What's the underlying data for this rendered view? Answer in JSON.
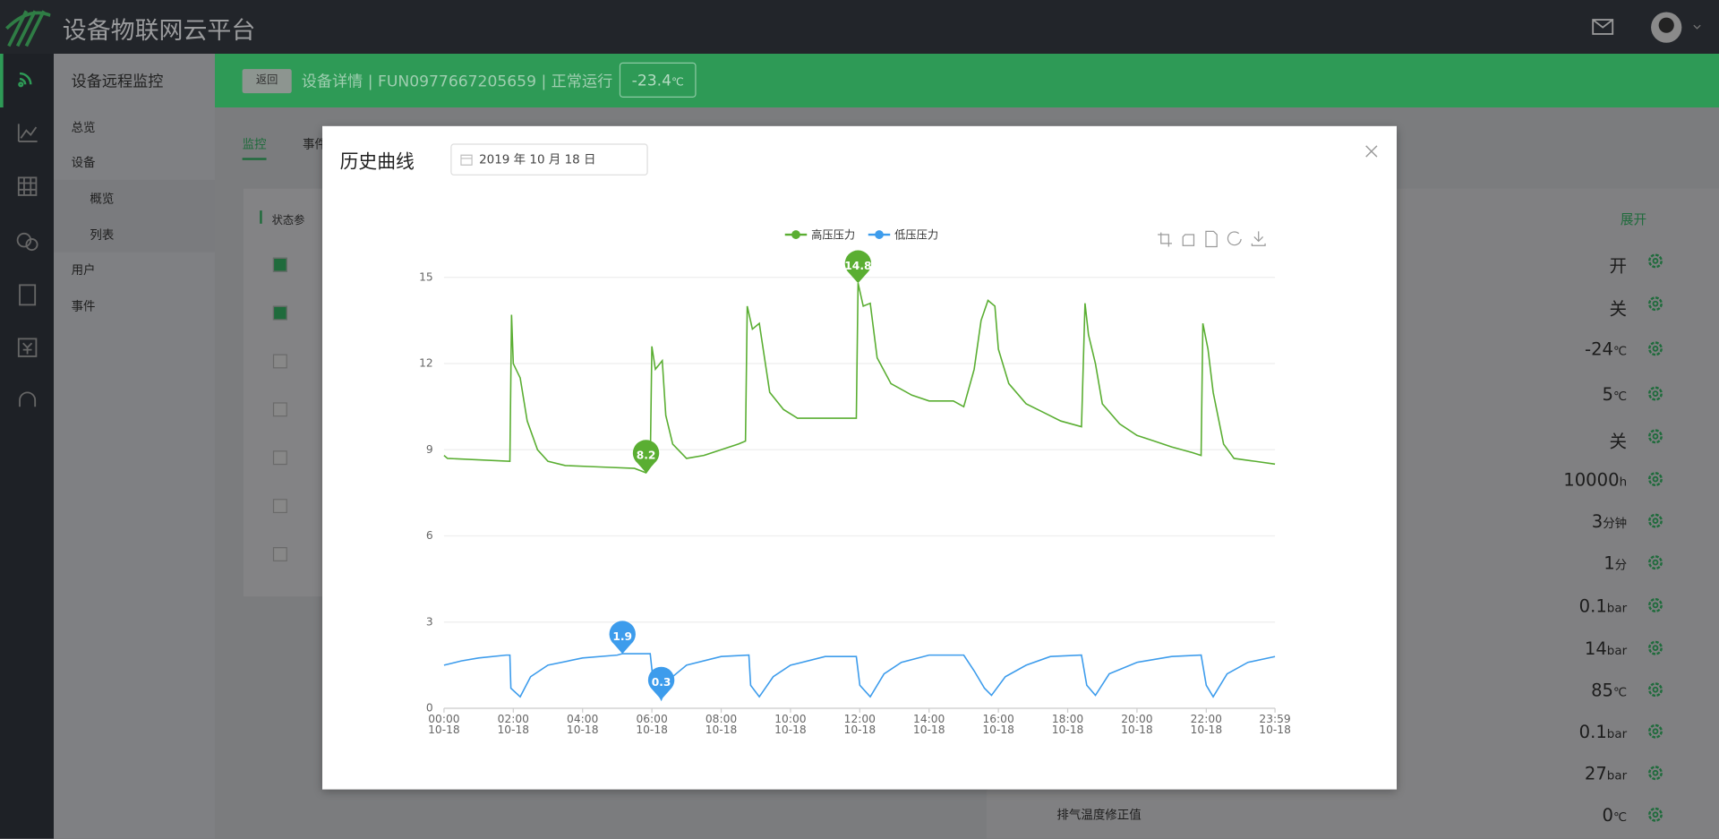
{
  "header": {
    "title": "设备物联网云平台"
  },
  "sidebar": {
    "title": "设备远程监控",
    "items": [
      "总览",
      "设备",
      "概览",
      "列表",
      "用户",
      "事件"
    ]
  },
  "device_bar": {
    "back": "返回",
    "info": "设备详情 | FUN0977667205659 | 正常运行",
    "temp": "-23.4",
    "temp_unit": "℃"
  },
  "tabs": [
    "监控",
    "事件"
  ],
  "panel": {
    "title": "状态参",
    "expand": "展开",
    "last_label": "排气温度修正值",
    "rows": [
      {
        "value": "开"
      },
      {
        "value": "关"
      },
      {
        "value": "-24",
        "unit": "℃"
      },
      {
        "value": "5",
        "unit": "℃"
      },
      {
        "value": "关"
      },
      {
        "value": "10000",
        "unit": "h"
      },
      {
        "value": "3",
        "unit": "分钟"
      },
      {
        "value": "1",
        "unit": "分"
      },
      {
        "value": "0.1",
        "unit": "bar"
      },
      {
        "value": "14",
        "unit": "bar"
      },
      {
        "value": "85",
        "unit": "℃"
      },
      {
        "value": "0.1",
        "unit": "bar"
      },
      {
        "value": "27",
        "unit": "bar"
      },
      {
        "value": "0",
        "unit": "℃"
      }
    ]
  },
  "modal": {
    "title": "历史曲线",
    "date": "2019 年 10 月 18 日"
  },
  "chart_data": {
    "type": "line",
    "series": [
      {
        "name": "高压压力",
        "color": "#5aae32",
        "x": [
          0,
          0.1,
          1.9,
          1.95,
          2.0,
          2.2,
          2.4,
          2.7,
          3.0,
          3.5,
          4.5,
          5.5,
          5.83,
          5.95,
          6.0,
          6.1,
          6.3,
          6.4,
          6.6,
          7.0,
          7.5,
          8.0,
          8.5,
          8.7,
          8.75,
          8.9,
          9.1,
          9.4,
          9.8,
          10.2,
          11.9,
          11.95,
          12.1,
          12.3,
          12.5,
          12.9,
          13.5,
          14.0,
          14.7,
          15.0,
          15.3,
          15.5,
          15.7,
          15.9,
          16.0,
          16.3,
          16.8,
          17.3,
          17.8,
          18.4,
          18.5,
          18.6,
          18.8,
          19.0,
          19.5,
          20.0,
          20.5,
          21.0,
          21.6,
          21.85,
          21.9,
          22.05,
          22.2,
          22.5,
          22.8,
          23.4,
          23.983
        ],
        "values": [
          8.8,
          8.7,
          8.6,
          13.7,
          12.0,
          11.5,
          10.0,
          9.0,
          8.6,
          8.45,
          8.4,
          8.35,
          8.2,
          8.4,
          12.6,
          11.8,
          12.1,
          10.2,
          9.2,
          8.7,
          8.8,
          9.0,
          9.2,
          9.3,
          14.0,
          13.2,
          13.4,
          11.0,
          10.4,
          10.1,
          10.1,
          14.8,
          14.0,
          14.1,
          12.2,
          11.3,
          10.9,
          10.7,
          10.7,
          10.5,
          11.8,
          13.5,
          14.2,
          14.0,
          12.5,
          11.3,
          10.6,
          10.3,
          10.0,
          9.8,
          14.1,
          13.0,
          12.0,
          10.6,
          9.9,
          9.5,
          9.3,
          9.1,
          8.9,
          8.8,
          13.4,
          12.5,
          11.0,
          9.2,
          8.7,
          8.6,
          8.5
        ]
      },
      {
        "name": "低压压力",
        "color": "#3d9cec",
        "x": [
          0,
          0.5,
          1.0,
          1.8,
          1.9,
          1.93,
          2.2,
          2.5,
          3.0,
          4.0,
          5.0,
          5.15,
          5.95,
          6.05,
          6.27,
          6.5,
          7.0,
          8.0,
          8.8,
          8.85,
          9.1,
          9.5,
          10.0,
          11.0,
          11.9,
          12.0,
          12.3,
          12.7,
          13.2,
          14.0,
          15.0,
          15.3,
          15.6,
          15.8,
          16.2,
          16.8,
          17.5,
          18.4,
          18.55,
          18.8,
          19.2,
          20.0,
          21.0,
          21.85,
          22.0,
          22.2,
          22.6,
          23.2,
          23.983
        ],
        "values": [
          1.5,
          1.65,
          1.75,
          1.85,
          1.85,
          0.7,
          0.4,
          1.1,
          1.5,
          1.75,
          1.85,
          1.9,
          1.9,
          0.8,
          0.3,
          1.0,
          1.5,
          1.8,
          1.85,
          0.8,
          0.4,
          1.1,
          1.5,
          1.8,
          1.8,
          0.8,
          0.4,
          1.2,
          1.6,
          1.85,
          1.85,
          1.3,
          0.7,
          0.45,
          1.1,
          1.5,
          1.8,
          1.85,
          0.8,
          0.45,
          1.2,
          1.6,
          1.8,
          1.85,
          0.8,
          0.4,
          1.2,
          1.6,
          1.8
        ]
      }
    ],
    "mark_points": [
      {
        "x": 11.95,
        "value": 14.8,
        "color": "#5aae32"
      },
      {
        "x": 5.83,
        "value": 8.2,
        "color": "#5aae32"
      },
      {
        "x": 5.15,
        "value": 1.9,
        "color": "#3d9cec"
      },
      {
        "x": 6.27,
        "value": 0.3,
        "color": "#3d9cec"
      }
    ],
    "xlim": [
      0,
      23.983
    ],
    "xticks": [
      {
        "value": 0,
        "label": "00:00\n10-18"
      },
      {
        "value": 2,
        "label": "02:00\n10-18"
      },
      {
        "value": 4,
        "label": "04:00\n10-18"
      },
      {
        "value": 6,
        "label": "06:00\n10-18"
      },
      {
        "value": 8,
        "label": "08:00\n10-18"
      },
      {
        "value": 10,
        "label": "10:00\n10-18"
      },
      {
        "value": 12,
        "label": "12:00\n10-18"
      },
      {
        "value": 14,
        "label": "14:00\n10-18"
      },
      {
        "value": 16,
        "label": "16:00\n10-18"
      },
      {
        "value": 18,
        "label": "18:00\n10-18"
      },
      {
        "value": 20,
        "label": "20:00\n10-18"
      },
      {
        "value": 22,
        "label": "22:00\n10-18"
      },
      {
        "value": 23.983,
        "label": "23:59\n10-18"
      }
    ],
    "ylim": [
      0,
      15
    ],
    "yticks": [
      0,
      3,
      6,
      9,
      12,
      15
    ],
    "grid": true,
    "legend": "top"
  }
}
